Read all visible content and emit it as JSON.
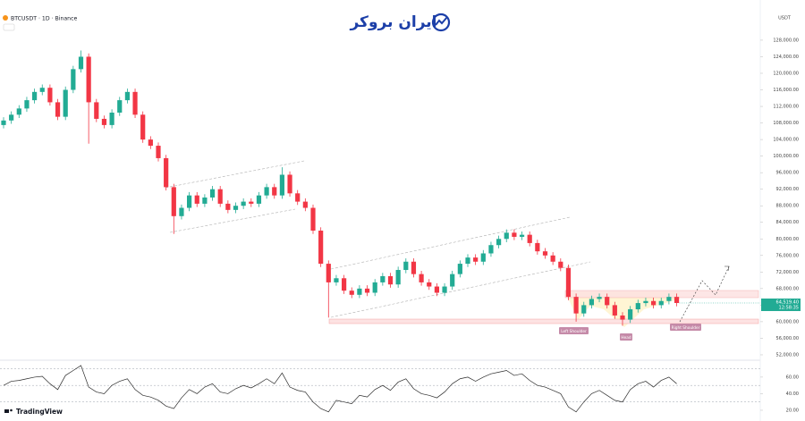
{
  "brand": "ایران بروکر",
  "watermark": "TradingView",
  "chart_data": [
    {
      "type": "candlestick",
      "title": "BTCUSDT · 1D · Binance",
      "currency": "USDT",
      "up_color": "#22ab94",
      "down_color": "#f23645",
      "ylim": [
        50700,
        137700
      ],
      "yticks": [
        {
          "value": 52000,
          "label": "52,000.00"
        },
        {
          "value": 56000,
          "label": "56,000.00"
        },
        {
          "value": 60000,
          "label": "60,000.00"
        },
        {
          "value": 64000,
          "label": "64,000.00"
        },
        {
          "value": 68000,
          "label": "68,000.00"
        },
        {
          "value": 72000,
          "label": "72,000.00"
        },
        {
          "value": 76000,
          "label": "76,000.00"
        },
        {
          "value": 80000,
          "label": "80,000.00"
        },
        {
          "value": 84000,
          "label": "84,000.00"
        },
        {
          "value": 88000,
          "label": "88,000.00"
        },
        {
          "value": 92000,
          "label": "92,000.00"
        },
        {
          "value": 96000,
          "label": "96,000.00"
        },
        {
          "value": 100000,
          "label": "100,000.00"
        },
        {
          "value": 104000,
          "label": "104,000.00"
        },
        {
          "value": 108000,
          "label": "108,000.00"
        },
        {
          "value": 112000,
          "label": "112,000.00"
        },
        {
          "value": 116000,
          "label": "116,000.00"
        },
        {
          "value": 120000,
          "label": "120,000.00"
        },
        {
          "value": 124000,
          "label": "124,000.00"
        },
        {
          "value": 128000,
          "label": "128,000.00"
        }
      ],
      "last_price": {
        "value": 64519.4,
        "label": "64,519.40"
      },
      "countdown": "12:58:35",
      "annotations": [
        "Left Shoulder",
        "Head",
        "Right Shoulder"
      ],
      "candles": [
        [
          107500,
          109400,
          106700,
          108600
        ],
        [
          108600,
          110800,
          107800,
          110000
        ],
        [
          110000,
          112300,
          109200,
          111500
        ],
        [
          111500,
          114300,
          110700,
          113500
        ],
        [
          113500,
          116300,
          112700,
          115500
        ],
        [
          115500,
          117300,
          114700,
          116500
        ],
        [
          116500,
          117300,
          112200,
          113000
        ],
        [
          113000,
          113800,
          108700,
          109500
        ],
        [
          109500,
          116800,
          108700,
          116000
        ],
        [
          116000,
          121800,
          115200,
          121000
        ],
        [
          121000,
          125500,
          120200,
          124000
        ],
        [
          124000,
          124800,
          103000,
          113000
        ],
        [
          113000,
          113800,
          108200,
          109000
        ],
        [
          109000,
          109800,
          106700,
          107500
        ],
        [
          107500,
          111300,
          106700,
          110500
        ],
        [
          110500,
          114300,
          109700,
          113500
        ],
        [
          113500,
          116300,
          112700,
          115500
        ],
        [
          115500,
          116300,
          109200,
          110000
        ],
        [
          110000,
          110800,
          103200,
          104000
        ],
        [
          104000,
          104800,
          101700,
          102500
        ],
        [
          102500,
          103300,
          98700,
          99500
        ],
        [
          99500,
          100300,
          91700,
          92500
        ],
        [
          92500,
          93300,
          81200,
          85500
        ],
        [
          85500,
          88300,
          84700,
          87500
        ],
        [
          87500,
          91300,
          86700,
          90500
        ],
        [
          90500,
          91300,
          87700,
          88500
        ],
        [
          88500,
          90800,
          87700,
          90000
        ],
        [
          90000,
          92800,
          89200,
          92000
        ],
        [
          92000,
          92800,
          87700,
          88500
        ],
        [
          88500,
          89300,
          86200,
          87000
        ],
        [
          87000,
          88800,
          86200,
          88000
        ],
        [
          88000,
          89800,
          87200,
          89000
        ],
        [
          89000,
          89800,
          87700,
          88500
        ],
        [
          88500,
          91300,
          87700,
          90500
        ],
        [
          90500,
          93300,
          89700,
          92500
        ],
        [
          92500,
          93300,
          89700,
          90500
        ],
        [
          90500,
          97300,
          89700,
          95500
        ],
        [
          95500,
          96300,
          90200,
          91000
        ],
        [
          91000,
          91800,
          88200,
          89000
        ],
        [
          89000,
          89800,
          86700,
          87500
        ],
        [
          87500,
          88300,
          81200,
          82000
        ],
        [
          82000,
          82800,
          73200,
          74000
        ],
        [
          74000,
          74800,
          61000,
          69500
        ],
        [
          69500,
          71300,
          68700,
          70500
        ],
        [
          70500,
          71300,
          66700,
          67500
        ],
        [
          67500,
          68300,
          65700,
          66500
        ],
        [
          66500,
          68800,
          65700,
          68000
        ],
        [
          68000,
          68800,
          66200,
          67000
        ],
        [
          67000,
          70300,
          66200,
          69500
        ],
        [
          69500,
          71800,
          68700,
          71000
        ],
        [
          71000,
          71800,
          68200,
          69000
        ],
        [
          69000,
          73300,
          68200,
          72500
        ],
        [
          72500,
          75300,
          71700,
          74500
        ],
        [
          74500,
          75300,
          70700,
          71500
        ],
        [
          71500,
          72300,
          68700,
          69500
        ],
        [
          69500,
          70300,
          67700,
          68500
        ],
        [
          68500,
          69300,
          66200,
          67000
        ],
        [
          67000,
          69300,
          66200,
          68500
        ],
        [
          68500,
          72300,
          67700,
          71500
        ],
        [
          71500,
          74800,
          70700,
          74000
        ],
        [
          74000,
          76300,
          73200,
          75500
        ],
        [
          75500,
          76300,
          73700,
          74500
        ],
        [
          74500,
          77300,
          73700,
          76500
        ],
        [
          76500,
          79300,
          75700,
          78500
        ],
        [
          78500,
          80800,
          77700,
          80000
        ],
        [
          80000,
          82300,
          79200,
          81500
        ],
        [
          81500,
          82300,
          79700,
          80500
        ],
        [
          80500,
          81800,
          79700,
          81000
        ],
        [
          81000,
          81800,
          78200,
          79000
        ],
        [
          79000,
          79800,
          76200,
          77000
        ],
        [
          77000,
          77800,
          75200,
          76000
        ],
        [
          76000,
          76800,
          73700,
          74500
        ],
        [
          74500,
          75300,
          72200,
          73000
        ],
        [
          73000,
          73800,
          65200,
          66000
        ],
        [
          66000,
          66800,
          60000,
          62000
        ],
        [
          62000,
          64800,
          61200,
          64000
        ],
        [
          64000,
          66300,
          63200,
          65500
        ],
        [
          65500,
          66800,
          64700,
          66000
        ],
        [
          66000,
          66800,
          63200,
          64000
        ],
        [
          64000,
          64800,
          60700,
          61500
        ],
        [
          61500,
          62300,
          59000,
          60500
        ],
        [
          60500,
          63800,
          59700,
          63000
        ],
        [
          63000,
          65300,
          62200,
          64500
        ],
        [
          64500,
          65800,
          63700,
          65000
        ],
        [
          65000,
          65800,
          63200,
          64000
        ],
        [
          64000,
          65800,
          63200,
          65000
        ],
        [
          65000,
          66800,
          64200,
          66000
        ],
        [
          66000,
          66800,
          63700,
          64519.4
        ]
      ]
    },
    {
      "type": "line",
      "color": "#2a2a2a",
      "ylim": [
        13.5,
        80.4
      ],
      "yticks": [
        {
          "value": 60,
          "label": "60.00"
        },
        {
          "value": 40,
          "label": "40.00"
        },
        {
          "value": 20,
          "label": "20.00"
        }
      ],
      "hlines": [
        70,
        50,
        30
      ],
      "values": [
        50,
        55,
        56,
        58,
        60,
        61,
        52,
        45,
        62,
        68,
        74,
        48,
        42,
        40,
        50,
        55,
        58,
        45,
        38,
        36,
        32,
        25,
        22,
        35,
        45,
        40,
        48,
        52,
        42,
        40,
        46,
        50,
        47,
        52,
        58,
        52,
        65,
        48,
        44,
        42,
        30,
        22,
        18,
        32,
        30,
        28,
        38,
        36,
        45,
        50,
        44,
        54,
        58,
        46,
        40,
        38,
        35,
        42,
        52,
        58,
        60,
        55,
        60,
        64,
        66,
        68,
        62,
        64,
        56,
        50,
        48,
        44,
        40,
        24,
        18,
        30,
        40,
        44,
        38,
        32,
        30,
        45,
        52,
        55,
        48,
        56,
        60,
        52
      ]
    }
  ]
}
